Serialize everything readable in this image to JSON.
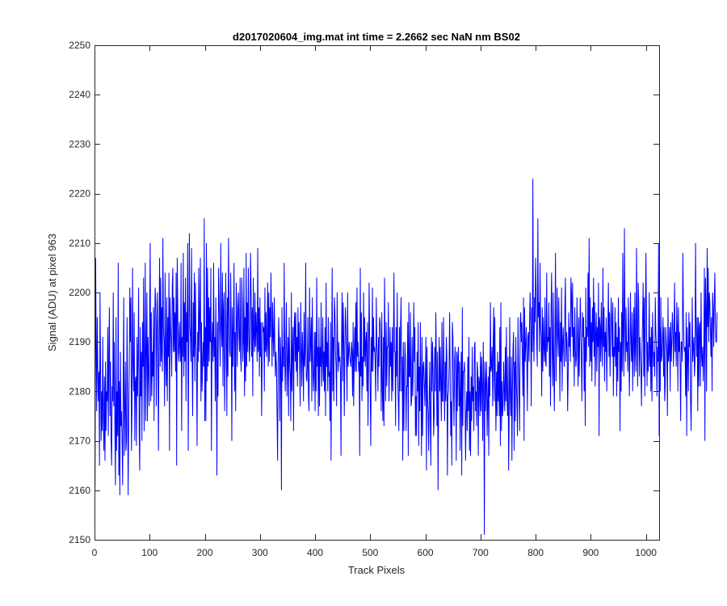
{
  "chart_data": {
    "type": "line",
    "title": "d2017020604_img.mat int time = 2.2662 sec  NaN nm BS02",
    "xlabel": "Track Pixels",
    "ylabel": "Signal (ADU) at pixel 963",
    "xlim": [
      0,
      1024
    ],
    "ylim": [
      2150,
      2250
    ],
    "xticks": [
      0,
      100,
      200,
      300,
      400,
      500,
      600,
      700,
      800,
      900,
      1000
    ],
    "yticks": [
      2150,
      2160,
      2170,
      2180,
      2190,
      2200,
      2210,
      2220,
      2230,
      2240,
      2250
    ],
    "grid": false,
    "legend": "none",
    "line_color": "#0000ff",
    "series": [
      {
        "x_start": 1,
        "x_step": 1,
        "values": [
          2160,
          2207,
          2190,
          2176,
          2195,
          2184,
          2178,
          2184,
          2165,
          2200,
          2184,
          2170,
          2180,
          2172,
          2191,
          2175,
          2168,
          2183,
          2166,
          2186,
          2172,
          2180,
          2178,
          2193,
          2171,
          2188,
          2197,
          2175,
          2186,
          2170,
          2165,
          2181,
          2178,
          2200,
          2177,
          2190,
          2172,
          2161,
          2195,
          2168,
          2180,
          2171,
          2206,
          2163,
          2182,
          2159,
          2188,
          2173,
          2176,
          2170,
          2161,
          2182,
          2199,
          2167,
          2176,
          2186,
          2168,
          2170,
          2195,
          2180,
          2159,
          2174,
          2184,
          2201,
          2190,
          2199,
          2168,
          2176,
          2205,
          2185,
          2180,
          2196,
          2170,
          2182,
          2183,
          2169,
          2191,
          2179,
          2187,
          2201,
          2172,
          2164,
          2193,
          2179,
          2188,
          2170,
          2194,
          2185,
          2203,
          2172,
          2186,
          2206,
          2174,
          2188,
          2200,
          2174,
          2191,
          2184,
          2177,
          2195,
          2210,
          2178,
          2196,
          2179,
          2188,
          2183,
          2197,
          2174,
          2193,
          2201,
          2198,
          2177,
          2193,
          2200,
          2185,
          2168,
          2192,
          2207,
          2185,
          2203,
          2186,
          2197,
          2184,
          2211,
          2193,
          2190,
          2177,
          2204,
          2186,
          2181,
          2199,
          2178,
          2195,
          2187,
          2204,
          2168,
          2199,
          2193,
          2190,
          2183,
          2201,
          2205,
          2188,
          2199,
          2188,
          2196,
          2184,
          2204,
          2165,
          2207,
          2197,
          2188,
          2186,
          2194,
          2189,
          2186,
          2206,
          2172,
          2191,
          2187,
          2208,
          2183,
          2198,
          2186,
          2203,
          2178,
          2196,
          2190,
          2210,
          2168,
          2189,
          2212,
          2193,
          2191,
          2186,
          2209,
          2187,
          2175,
          2198,
          2187,
          2204,
          2182,
          2202,
          2190,
          2187,
          2169,
          2192,
          2186,
          2205,
          2188,
          2195,
          2207,
          2178,
          2194,
          2180,
          2185,
          2190,
          2185,
          2215,
          2174,
          2193,
          2174,
          2210,
          2182,
          2205,
          2185,
          2199,
          2186,
          2197,
          2190,
          2205,
          2168,
          2190,
          2194,
          2186,
          2206,
          2187,
          2191,
          2178,
          2199,
          2186,
          2163,
          2194,
          2179,
          2205,
          2199,
          2191,
          2185,
          2210,
          2193,
          2189,
          2204,
          2181,
          2197,
          2200,
          2176,
          2186,
          2204,
          2192,
          2175,
          2199,
          2183,
          2211,
          2198,
          2188,
          2187,
          2204,
          2192,
          2170,
          2197,
          2185,
          2193,
          2206,
          2180,
          2192,
          2176,
          2202,
          2196,
          2185,
          2197,
          2200,
          2191,
          2188,
          2203,
          2187,
          2184,
          2203,
          2198,
          2186,
          2190,
          2205,
          2179,
          2195,
          2182,
          2208,
          2185,
          2198,
          2188,
          2205,
          2192,
          2186,
          2190,
          2208,
          2200,
          2187,
          2197,
          2179,
          2203,
          2191,
          2188,
          2200,
          2189,
          2196,
          2192,
          2186,
          2209,
          2188,
          2197,
          2183,
          2199,
          2187,
          2194,
          2175,
          2186,
          2194,
          2192,
          2193,
          2180,
          2201,
          2188,
          2196,
          2187,
          2190,
          2202,
          2185,
          2200,
          2186,
          2197,
          2191,
          2204,
          2194,
          2185,
          2198,
          2191,
          2187,
          2199,
          2190,
          2183,
          2188,
          2185,
          2176,
          2166,
          2186,
          2195,
          2190,
          2174,
          2191,
          2185,
          2160,
          2197,
          2182,
          2189,
          2185,
          2206,
          2186,
          2180,
          2190,
          2198,
          2179,
          2186,
          2191,
          2175,
          2195,
          2186,
          2183,
          2174,
          2200,
          2180,
          2188,
          2193,
          2172,
          2193,
          2196,
          2186,
          2196,
          2184,
          2191,
          2181,
          2197,
          2188,
          2194,
          2186,
          2177,
          2198,
          2188,
          2181,
          2192,
          2187,
          2178,
          2196,
          2185,
          2188,
          2206,
          2183,
          2182,
          2185,
          2195,
          2179,
          2176,
          2201,
          2186,
          2190,
          2195,
          2178,
          2199,
          2185,
          2180,
          2184,
          2192,
          2176,
          2192,
          2180,
          2203,
          2185,
          2189,
          2175,
          2195,
          2177,
          2189,
          2185,
          2198,
          2181,
          2186,
          2195,
          2182,
          2188,
          2180,
          2193,
          2175,
          2202,
          2185,
          2190,
          2180,
          2195,
          2183,
          2184,
          2174,
          2194,
          2166,
          2187,
          2205,
          2180,
          2191,
          2178,
          2199,
          2196,
          2188,
          2185,
          2177,
          2200,
          2189,
          2184,
          2190,
          2186,
          2187,
          2184,
          2167,
          2190,
          2200,
          2182,
          2198,
          2190,
          2175,
          2189,
          2197,
          2193,
          2186,
          2178,
          2200,
          2185,
          2188,
          2190,
          2187,
          2186,
          2185,
          2190,
          2188,
          2179,
          2194,
          2177,
          2187,
          2193,
          2184,
          2198,
          2184,
          2201,
          2187,
          2190,
          2184,
          2186,
          2167,
          2205,
          2183,
          2196,
          2178,
          2187,
          2181,
          2200,
          2186,
          2195,
          2185,
          2190,
          2192,
          2180,
          2194,
          2173,
          2185,
          2202,
          2191,
          2180,
          2169,
          2191,
          2184,
          2201,
          2184,
          2195,
          2188,
          2189,
          2186,
          2178,
          2199,
          2190,
          2187,
          2180,
          2191,
          2185,
          2195,
          2194,
          2191,
          2176,
          2196,
          2180,
          2174,
          2191,
          2173,
          2203,
          2190,
          2178,
          2194,
          2181,
          2189,
          2189,
          2198,
          2178,
          2185,
          2193,
          2185,
          2190,
          2178,
          2193,
          2180,
          2189,
          2204,
          2188,
          2188,
          2173,
          2193,
          2183,
          2200,
          2182,
          2178,
          2172,
          2193,
          2180,
          2193,
          2199,
          2180,
          2187,
          2166,
          2190,
          2172,
          2183,
          2190,
          2186,
          2172,
          2181,
          2181,
          2194,
          2167,
          2198,
          2183,
          2183,
          2196,
          2177,
          2178,
          2191,
          2179,
          2184,
          2198,
          2186,
          2193,
          2171,
          2179,
          2171,
          2188,
          2180,
          2194,
          2169,
          2185,
          2176,
          2194,
          2182,
          2167,
          2191,
          2171,
          2185,
          2186,
          2182,
          2177,
          2183,
          2191,
          2164,
          2189,
          2178,
          2176,
          2168,
          2179,
          2186,
          2174,
          2165,
          2191,
          2180,
          2190,
          2184,
          2171,
          2175,
          2189,
          2180,
          2196,
          2186,
          2173,
          2188,
          2160,
          2176,
          2191,
          2180,
          2189,
          2181,
          2174,
          2194,
          2178,
          2178,
          2195,
          2183,
          2174,
          2186,
          2178,
          2191,
          2187,
          2163,
          2179,
          2180,
          2185,
          2196,
          2183,
          2171,
          2178,
          2165,
          2194,
          2191,
          2180,
          2173,
          2186,
          2189,
          2183,
          2166,
          2188,
          2176,
          2187,
          2189,
          2177,
          2186,
          2168,
          2180,
          2188,
          2163,
          2197,
          2173,
          2184,
          2184,
          2186,
          2177,
          2166,
          2176,
          2180,
          2172,
          2187,
          2176,
          2191,
          2168,
          2180,
          2167,
          2183,
          2174,
          2189,
          2178,
          2181,
          2172,
          2189,
          2190,
          2176,
          2180,
          2173,
          2186,
          2184,
          2167,
          2183,
          2182,
          2175,
          2188,
          2176,
          2187,
          2181,
          2170,
          2190,
          2181,
          2151,
          2186,
          2176,
          2182,
          2186,
          2171,
          2178,
          2183,
          2167,
          2185,
          2179,
          2198,
          2184,
          2185,
          2189,
          2177,
          2190,
          2197,
          2178,
          2195,
          2181,
          2172,
          2184,
          2175,
          2188,
          2178,
          2186,
          2175,
          2193,
          2169,
          2198,
          2172,
          2182,
          2175,
          2177,
          2186,
          2180,
          2176,
          2189,
          2178,
          2193,
          2179,
          2175,
          2187,
          2164,
          2175,
          2195,
          2179,
          2175,
          2187,
          2166,
          2181,
          2189,
          2192,
          2168,
          2186,
          2174,
          2191,
          2182,
          2178,
          2171,
          2195,
          2186,
          2180,
          2172,
          2194,
          2196,
          2190,
          2194,
          2186,
          2179,
          2199,
          2170,
          2197,
          2186,
          2189,
          2193,
          2187,
          2176,
          2191,
          2192,
          2186,
          2194,
          2200,
          2193,
          2177,
          2197,
          2188,
          2223,
          2192,
          2186,
          2199,
          2194,
          2207,
          2200,
          2190,
          2185,
          2215,
          2195,
          2198,
          2188,
          2206,
          2193,
          2191,
          2179,
          2197,
          2184,
          2195,
          2189,
          2186,
          2199,
          2186,
          2185,
          2204,
          2188,
          2191,
          2190,
          2198,
          2183,
          2193,
          2177,
          2197,
          2204,
          2188,
          2181,
          2200,
          2184,
          2176,
          2192,
          2208,
          2182,
          2190,
          2201,
          2191,
          2187,
          2199,
          2190,
          2178,
          2194,
          2186,
          2201,
          2180,
          2190,
          2193,
          2188,
          2185,
          2197,
          2203,
          2186,
          2192,
          2190,
          2176,
          2183,
          2196,
          2189,
          2193,
          2186,
          2203,
          2200,
          2191,
          2202,
          2187,
          2193,
          2181,
          2197,
          2189,
          2185,
          2187,
          2199,
          2189,
          2181,
          2195,
          2183,
          2191,
          2199,
          2192,
          2186,
          2178,
          2196,
          2191,
          2195,
          2180,
          2191,
          2173,
          2201,
          2186,
          2193,
          2191,
          2204,
          2189,
          2211,
          2185,
          2199,
          2186,
          2194,
          2182,
          2197,
          2190,
          2203,
          2187,
          2198,
          2181,
          2192,
          2196,
          2184,
          2193,
          2189,
          2202,
          2171,
          2195,
          2193,
          2186,
          2198,
          2190,
          2185,
          2205,
          2189,
          2197,
          2182,
          2192,
          2188,
          2195,
          2180,
          2190,
          2193,
          2202,
          2187,
          2196,
          2183,
          2192,
          2199,
          2194,
          2187,
          2198,
          2179,
          2189,
          2187,
          2197,
          2185,
          2194,
          2179,
          2191,
          2182,
          2199,
          2188,
          2193,
          2172,
          2190,
          2180,
          2196,
          2184,
          2208,
          2191,
          2183,
          2213,
          2195,
          2186,
          2197,
          2188,
          2190,
          2184,
          2199,
          2191,
          2179,
          2188,
          2200,
          2190,
          2186,
          2196,
          2180,
          2190,
          2197,
          2183,
          2200,
          2188,
          2184,
          2209,
          2192,
          2181,
          2202,
          2198,
          2183,
          2191,
          2188,
          2184,
          2177,
          2189,
          2195,
          2202,
          2183,
          2199,
          2179,
          2193,
          2208,
          2196,
          2181,
          2190,
          2184,
          2187,
          2200,
          2185,
          2191,
          2180,
          2193,
          2178,
          2196,
          2189,
          2185,
          2188,
          2183,
          2199,
          2192,
          2189,
          2179,
          2189,
          2186,
          2210,
          2171,
          2193,
          2180,
          2199,
          2186,
          2187,
          2191,
          2195,
          2183,
          2193,
          2178,
          2181,
          2193,
          2190,
          2188,
          2175,
          2199,
          2186,
          2188,
          2193,
          2180,
          2194,
          2186,
          2190,
          2196,
          2193,
          2185,
          2192,
          2202,
          2188,
          2192,
          2185,
          2198,
          2193,
          2180,
          2197,
          2188,
          2192,
          2185,
          2174,
          2190,
          2190,
          2186,
          2208,
          2196,
          2189,
          2188,
          2189,
          2179,
          2196,
          2171,
          2193,
          2187,
          2180,
          2196,
          2189,
          2194,
          2178,
          2172,
          2185,
          2199,
          2186,
          2189,
          2191,
          2183,
          2186,
          2210,
          2193,
          2187,
          2195,
          2176,
          2195,
          2181,
          2193,
          2194,
          2181,
          2200,
          2187,
          2185,
          2189,
          2182,
          2189,
          2205,
          2170,
          2203,
          2197,
          2180,
          2209,
          2193,
          2205,
          2190,
          2200,
          2198,
          2192,
          2187,
          2195,
          2180,
          2200,
          2197,
          2189,
          2198,
          2204,
          2194,
          2190,
          2190,
          2196
        ]
      }
    ]
  }
}
